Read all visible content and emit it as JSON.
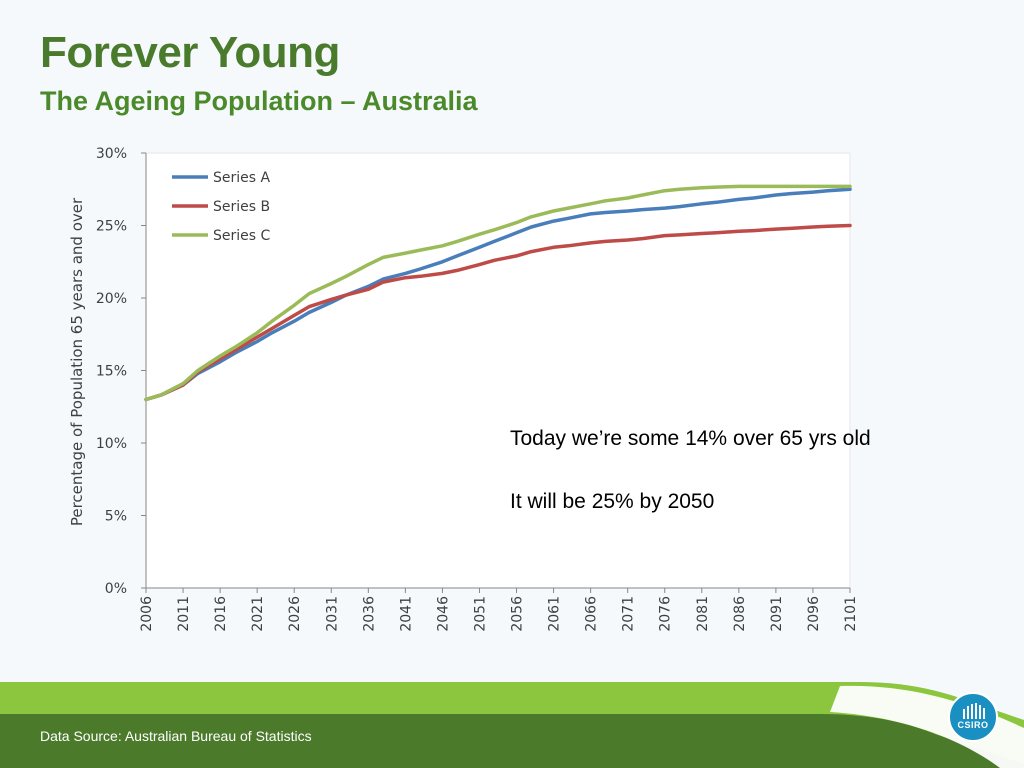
{
  "slide": {
    "title": "Forever Young",
    "subtitle": "The Ageing Population – Australia",
    "notes": [
      "Today we’re some 14% over 65 yrs old",
      "It will be 25% by 2050"
    ],
    "footer": "Data Source: Australian Bureau of Statistics",
    "logo_text": "CSIRO"
  },
  "colors": {
    "title": "#4a7a2c",
    "footer_green": "#4b7a2b",
    "accent_green": "#8cc63f",
    "logo_blue": "#1a8fc2"
  },
  "chart_data": {
    "type": "line",
    "ylabel": "Percentage of Population 65 years and over",
    "xlabel": "",
    "ylim": [
      0,
      30
    ],
    "xlim": [
      2006,
      2101
    ],
    "ytick_values": [
      0,
      5,
      10,
      15,
      20,
      25,
      30
    ],
    "yticks": [
      "0%",
      "5%",
      "10%",
      "15%",
      "20%",
      "25%",
      "30%"
    ],
    "xticks": [
      "2006",
      "2011",
      "2016",
      "2021",
      "2026",
      "2031",
      "2036",
      "2041",
      "2046",
      "2051",
      "2056",
      "2061",
      "2066",
      "2071",
      "2076",
      "2081",
      "2086",
      "2091",
      "2096",
      "2101"
    ],
    "legend": "top-left",
    "grid": false,
    "series": [
      {
        "name": "Series A",
        "color": "#4a7ebb",
        "x": [
          2006,
          2008,
          2011,
          2013,
          2016,
          2018,
          2021,
          2023,
          2026,
          2028,
          2031,
          2033,
          2036,
          2038,
          2041,
          2043,
          2046,
          2048,
          2051,
          2053,
          2056,
          2058,
          2061,
          2063,
          2066,
          2068,
          2071,
          2073,
          2076,
          2078,
          2081,
          2083,
          2086,
          2088,
          2091,
          2093,
          2096,
          2098,
          2101
        ],
        "y": [
          13.0,
          13.3,
          14.0,
          14.8,
          15.6,
          16.2,
          17.0,
          17.6,
          18.4,
          19.0,
          19.7,
          20.2,
          20.8,
          21.3,
          21.7,
          22.0,
          22.5,
          22.9,
          23.5,
          23.9,
          24.5,
          24.9,
          25.3,
          25.5,
          25.8,
          25.9,
          26.0,
          26.1,
          26.2,
          26.3,
          26.5,
          26.6,
          26.8,
          26.9,
          27.1,
          27.2,
          27.3,
          27.4,
          27.5
        ]
      },
      {
        "name": "Series B",
        "color": "#be4b48",
        "x": [
          2006,
          2008,
          2011,
          2013,
          2016,
          2018,
          2021,
          2023,
          2026,
          2028,
          2031,
          2033,
          2036,
          2038,
          2041,
          2043,
          2046,
          2048,
          2051,
          2053,
          2056,
          2058,
          2061,
          2063,
          2066,
          2068,
          2071,
          2073,
          2076,
          2078,
          2081,
          2083,
          2086,
          2088,
          2091,
          2093,
          2096,
          2098,
          2101
        ],
        "y": [
          13.0,
          13.3,
          14.0,
          14.9,
          15.8,
          16.4,
          17.3,
          17.9,
          18.8,
          19.4,
          19.9,
          20.2,
          20.6,
          21.1,
          21.4,
          21.5,
          21.7,
          21.9,
          22.3,
          22.6,
          22.9,
          23.2,
          23.5,
          23.6,
          23.8,
          23.9,
          24.0,
          24.1,
          24.3,
          24.35,
          24.45,
          24.5,
          24.6,
          24.65,
          24.75,
          24.8,
          24.9,
          24.95,
          25.0
        ]
      },
      {
        "name": "Series C",
        "color": "#9bbb59",
        "x": [
          2006,
          2008,
          2011,
          2013,
          2016,
          2018,
          2021,
          2023,
          2026,
          2028,
          2031,
          2033,
          2036,
          2038,
          2041,
          2043,
          2046,
          2048,
          2051,
          2053,
          2056,
          2058,
          2061,
          2063,
          2066,
          2068,
          2071,
          2073,
          2076,
          2078,
          2081,
          2083,
          2086,
          2088,
          2091,
          2093,
          2096,
          2098,
          2101
        ],
        "y": [
          13.0,
          13.3,
          14.1,
          15.0,
          16.0,
          16.6,
          17.6,
          18.4,
          19.5,
          20.3,
          21.0,
          21.5,
          22.3,
          22.8,
          23.1,
          23.3,
          23.6,
          23.9,
          24.4,
          24.7,
          25.2,
          25.6,
          26.0,
          26.2,
          26.5,
          26.7,
          26.9,
          27.1,
          27.4,
          27.5,
          27.6,
          27.65,
          27.7,
          27.7,
          27.7,
          27.7,
          27.7,
          27.7,
          27.7
        ]
      }
    ]
  }
}
